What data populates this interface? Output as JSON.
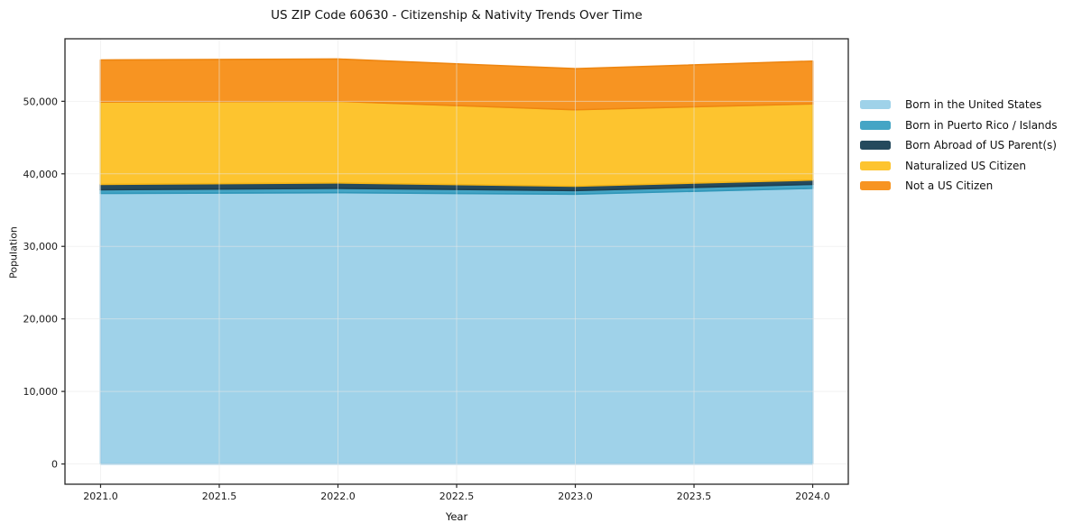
{
  "title": "US ZIP Code 60630 - Citizenship & Nativity Trends Over Time",
  "chart_data": {
    "type": "area",
    "stacked": true,
    "title": "US ZIP Code 60630 - Citizenship & Nativity Trends Over Time",
    "xlabel": "Year",
    "ylabel": "Population",
    "x": [
      2021,
      2022,
      2023,
      2024
    ],
    "series": [
      {
        "name": "Born in the United States",
        "values": [
          37300,
          37400,
          37200,
          38000
        ],
        "fill": "#9fd2e9",
        "line": "#85c4e3"
      },
      {
        "name": "Born in Puerto Rico / Islands",
        "values": [
          500,
          600,
          500,
          550
        ],
        "fill": "#45a5c5",
        "line": "#2f96b8"
      },
      {
        "name": "Born Abroad of US Parent(s)",
        "values": [
          750,
          750,
          600,
          600
        ],
        "fill": "#254a5d",
        "line": "#1d3f50"
      },
      {
        "name": "Naturalized US Citizen",
        "values": [
          11350,
          11250,
          10530,
          10500
        ],
        "fill": "#fdc42f",
        "line": "#f4b517"
      },
      {
        "name": "Not a US Citizen",
        "values": [
          5800,
          5830,
          5670,
          5890
        ],
        "fill": "#f79422",
        "line": "#ee8611"
      }
    ],
    "x_ticks": [
      {
        "v": 2021.0,
        "label": "2021.0"
      },
      {
        "v": 2021.5,
        "label": "2021.5"
      },
      {
        "v": 2022.0,
        "label": "2022.0"
      },
      {
        "v": 2022.5,
        "label": "2022.5"
      },
      {
        "v": 2023.0,
        "label": "2023.0"
      },
      {
        "v": 2023.5,
        "label": "2023.5"
      },
      {
        "v": 2024.0,
        "label": "2024.0"
      }
    ],
    "y_ticks": [
      {
        "v": 0,
        "label": "0"
      },
      {
        "v": 10000,
        "label": "10,000"
      },
      {
        "v": 20000,
        "label": "20,000"
      },
      {
        "v": 30000,
        "label": "30,000"
      },
      {
        "v": 40000,
        "label": "40,000"
      },
      {
        "v": 50000,
        "label": "50,000"
      }
    ],
    "xlim": [
      2020.85,
      2024.15
    ],
    "ylim": [
      -2790,
      58620
    ],
    "grid": true,
    "grid_color": "#e8e8e8",
    "spine_color": "#262626",
    "legend_position": "right-outside"
  }
}
